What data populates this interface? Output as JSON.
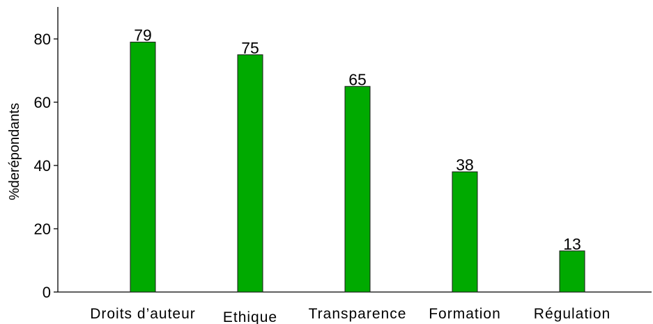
{
  "chart_data": {
    "type": "bar",
    "categories": [
      "Droits d’auteur",
      "Ethique",
      "Transparence",
      "Formation",
      "Régulation"
    ],
    "values": [
      79,
      75,
      65,
      38,
      13
    ],
    "data_labels": [
      "79",
      "75",
      "65",
      "38",
      "13"
    ],
    "title": "",
    "xlabel": "",
    "ylabel": "%derépondants",
    "ylim": [
      0,
      80
    ],
    "yticks": [
      0,
      20,
      40,
      60,
      80
    ],
    "grid": false,
    "legend": "none",
    "bar_color": "#00aa00"
  }
}
